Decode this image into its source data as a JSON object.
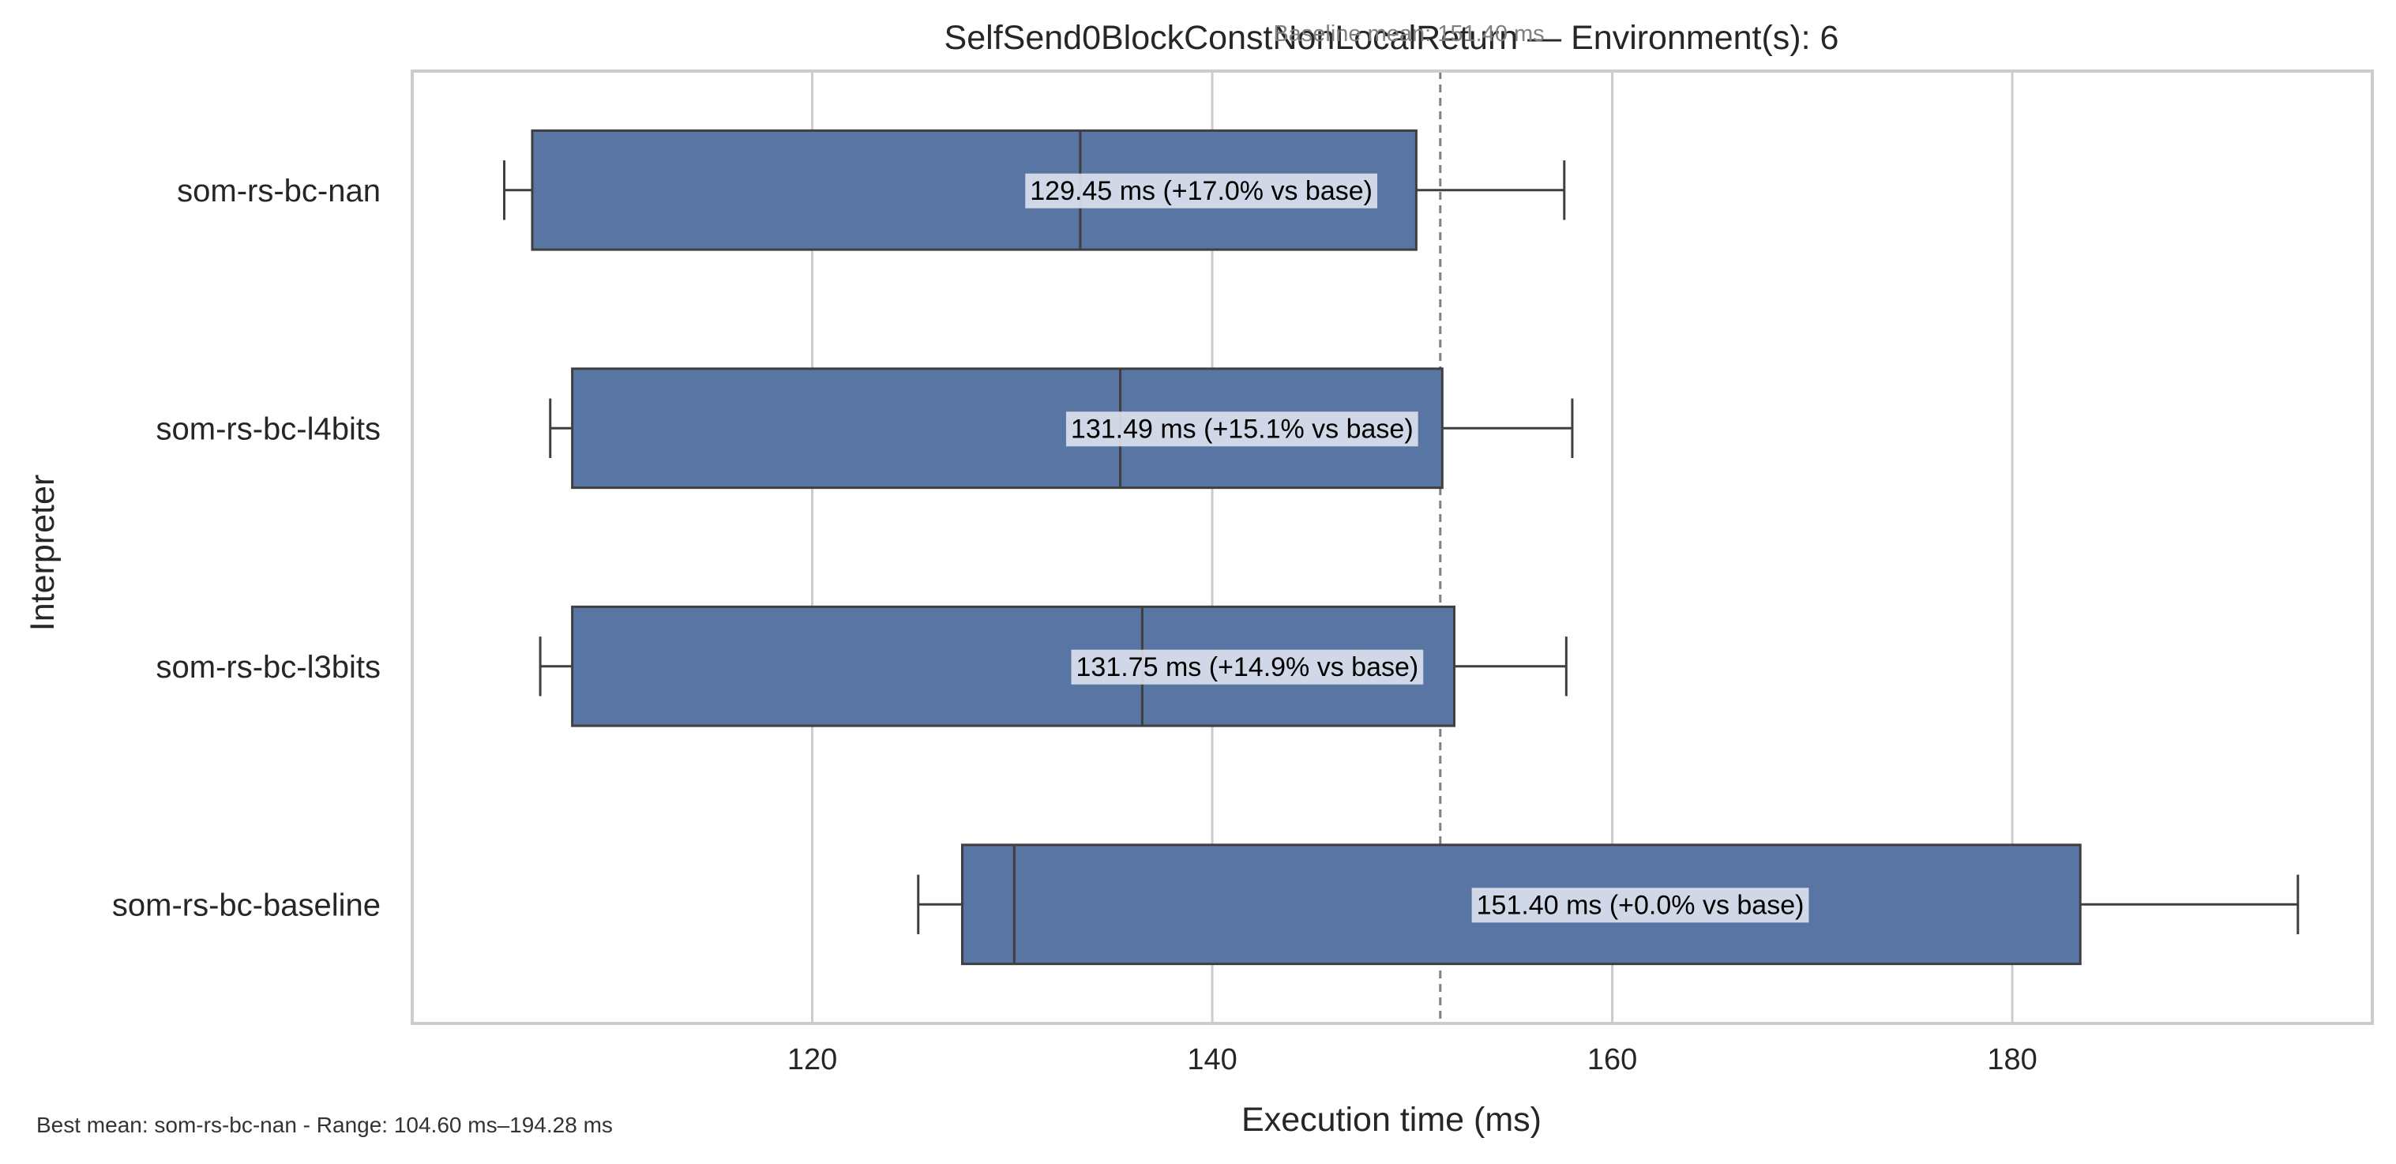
{
  "chart_data": {
    "type": "box",
    "orientation": "horizontal",
    "title": "SelfSend0BlockConstNonLocalReturn — Environment(s): 6",
    "xlabel": "Execution time (ms)",
    "ylabel": "Interpreter",
    "xlim": [
      100,
      198
    ],
    "xticks": [
      120,
      140,
      160,
      180
    ],
    "grid": "x",
    "categories": [
      "som-rs-bc-nan",
      "som-rs-bc-l4bits",
      "som-rs-bc-l3bits",
      "som-rs-bc-baseline"
    ],
    "boxes": [
      {
        "name": "som-rs-bc-nan",
        "whisker_low": 104.6,
        "q1": 106.0,
        "median": 133.4,
        "q3": 150.2,
        "whisker_high": 157.6,
        "mean": 129.45,
        "annotation": "129.45 ms  (+17.0% vs base)"
      },
      {
        "name": "som-rs-bc-l4bits",
        "whisker_low": 106.9,
        "q1": 108.0,
        "median": 135.4,
        "q3": 151.5,
        "whisker_high": 158.0,
        "mean": 131.49,
        "annotation": "131.49 ms  (+15.1% vs base)"
      },
      {
        "name": "som-rs-bc-l3bits",
        "whisker_low": 106.4,
        "q1": 108.0,
        "median": 136.5,
        "q3": 152.1,
        "whisker_high": 157.7,
        "mean": 131.75,
        "annotation": "131.75 ms  (+14.9% vs base)"
      },
      {
        "name": "som-rs-bc-baseline",
        "whisker_low": 125.3,
        "q1": 127.5,
        "median": 130.1,
        "q3": 183.4,
        "whisker_high": 194.28,
        "mean": 151.4,
        "annotation": "151.40 ms  (+0.0% vs base)"
      }
    ],
    "baseline": {
      "value": 151.4,
      "label": "Baseline mean: 151.40 ms"
    },
    "footer": "Best mean: som-rs-bc-nan - Range: 104.60 ms–194.28 ms",
    "colors": {
      "box_fill": "#5975a4",
      "box_edge": "#3f3f3f",
      "grid": "#cccccc",
      "frame": "#cccccc",
      "baseline": "#808080",
      "label_bg": "#dde2ee"
    }
  }
}
